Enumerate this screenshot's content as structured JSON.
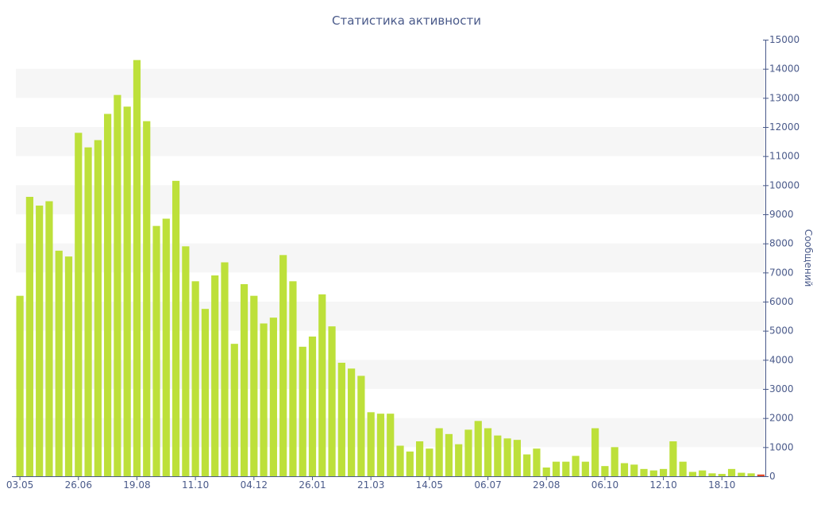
{
  "chart_data": {
    "type": "bar",
    "title": "Статистика активности",
    "xlabel": "",
    "ylabel": "Сообщений",
    "y_axis_side": "right",
    "ylim": [
      0,
      15000
    ],
    "y_ticks": [
      0,
      1000,
      2000,
      3000,
      4000,
      5000,
      6000,
      7000,
      8000,
      9000,
      10000,
      11000,
      12000,
      13000,
      14000,
      15000
    ],
    "x_tick_labels": [
      {
        "label": "03.05",
        "index": 0
      },
      {
        "label": "26.06",
        "index": 6
      },
      {
        "label": "19.08",
        "index": 12
      },
      {
        "label": "11.10",
        "index": 18
      },
      {
        "label": "04.12",
        "index": 24
      },
      {
        "label": "26.01",
        "index": 30
      },
      {
        "label": "21.03",
        "index": 36
      },
      {
        "label": "14.05",
        "index": 42
      },
      {
        "label": "06.07",
        "index": 48
      },
      {
        "label": "29.08",
        "index": 54
      },
      {
        "label": "06.10",
        "index": 60
      },
      {
        "label": "12.10",
        "index": 66
      },
      {
        "label": "18.10",
        "index": 72
      }
    ],
    "grid": "horizontal-bands",
    "bar_color": "#bde03a",
    "last_bar_color": "#e04a2a",
    "band_color": "#f6f6f6",
    "axis_color": "#4a5a8a",
    "series": [
      {
        "values": [
          6200,
          9600,
          9300,
          9450,
          7750,
          7550,
          11800,
          11300,
          11550,
          12450,
          13100,
          12700,
          14300,
          12200,
          8600,
          8850,
          10150,
          7900,
          6700,
          5750,
          6900,
          7350,
          4550,
          6600,
          6200,
          5250,
          5450,
          7600,
          6700,
          4450,
          4800,
          6250,
          5150,
          3900,
          3700,
          3450,
          2200,
          2150,
          2150,
          1050,
          850,
          1200,
          950,
          1650,
          1450,
          1100,
          1600,
          1900,
          1650,
          1400,
          1300,
          1250,
          750,
          950,
          300,
          500,
          500,
          700,
          500,
          1650,
          350,
          1000,
          450,
          400,
          250,
          200,
          250,
          1200,
          500,
          150,
          200,
          100,
          80,
          250,
          120,
          100,
          60
        ]
      }
    ]
  }
}
